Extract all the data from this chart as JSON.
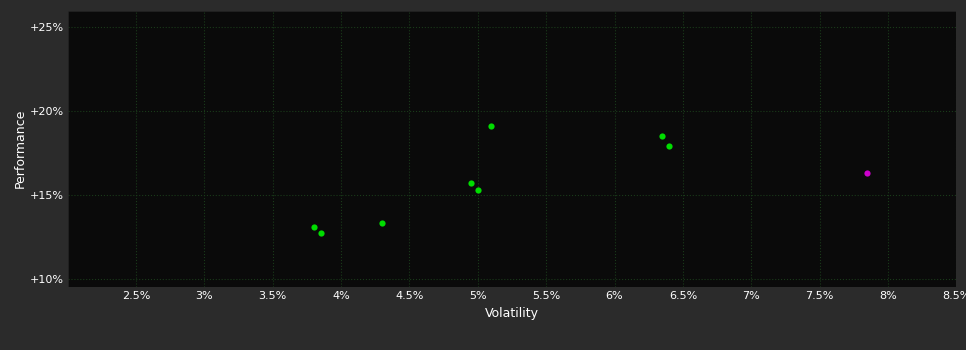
{
  "background_color": "#2b2b2b",
  "plot_bg_color": "#0a0a0a",
  "grid_color": "#1a3a1a",
  "grid_linestyle": ":",
  "xlabel": "Volatility",
  "ylabel": "Performance",
  "xlim": [
    0.02,
    0.085
  ],
  "ylim": [
    0.095,
    0.26
  ],
  "xticks": [
    0.025,
    0.03,
    0.035,
    0.04,
    0.045,
    0.05,
    0.055,
    0.06,
    0.065,
    0.07,
    0.075,
    0.08,
    0.085
  ],
  "xtick_labels": [
    "2.5%",
    "3%",
    "3.5%",
    "4%",
    "4.5%",
    "5%",
    "5.5%",
    "6%",
    "6.5%",
    "7%",
    "7.5%",
    "8%",
    "8.5%"
  ],
  "yticks": [
    0.1,
    0.15,
    0.2,
    0.25
  ],
  "ytick_labels": [
    "+10%",
    "+15%",
    "+20%",
    "+25%"
  ],
  "green_points": [
    [
      0.038,
      0.131
    ],
    [
      0.0385,
      0.127
    ],
    [
      0.043,
      0.133
    ],
    [
      0.0495,
      0.157
    ],
    [
      0.05,
      0.153
    ],
    [
      0.051,
      0.191
    ],
    [
      0.0635,
      0.185
    ],
    [
      0.064,
      0.179
    ]
  ],
  "green_color": "#00dd00",
  "magenta_point": [
    0.0785,
    0.163
  ],
  "magenta_color": "#cc00cc",
  "marker_size": 20,
  "tick_color": "#ffffff",
  "tick_fontsize": 8,
  "label_fontsize": 9,
  "label_color": "#ffffff"
}
